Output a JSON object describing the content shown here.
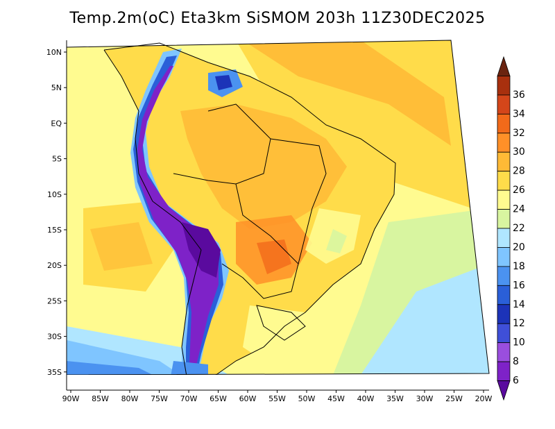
{
  "title": "Temp.2m(oC) Eta3km SiSMOM 203h 11Z30DEC2025",
  "map": {
    "lon_labels": [
      "90W",
      "85W",
      "80W",
      "75W",
      "70W",
      "65W",
      "60W",
      "55W",
      "50W",
      "45W",
      "40W",
      "35W",
      "30W",
      "25W",
      "20W"
    ],
    "lat_labels": [
      "10N",
      "5N",
      "EQ",
      "5S",
      "10S",
      "15S",
      "20S",
      "25S",
      "30S",
      "35S"
    ]
  },
  "colorbar": {
    "labels": [
      "6",
      "8",
      "10",
      "12",
      "14",
      "16",
      "18",
      "20",
      "22",
      "24",
      "26",
      "28",
      "30",
      "32",
      "34",
      "36"
    ],
    "colors": [
      "#5a0a9e",
      "#7e22c8",
      "#9a4ede",
      "#3f4fd8",
      "#1c33b8",
      "#2a5fd8",
      "#4b92f0",
      "#7fc5ff",
      "#b0e6ff",
      "#d8f5a0",
      "#fffb90",
      "#ffdc4a",
      "#ffba36",
      "#ff9028",
      "#f26a1a",
      "#d4461a",
      "#a8300e",
      "#6a2410"
    ]
  }
}
